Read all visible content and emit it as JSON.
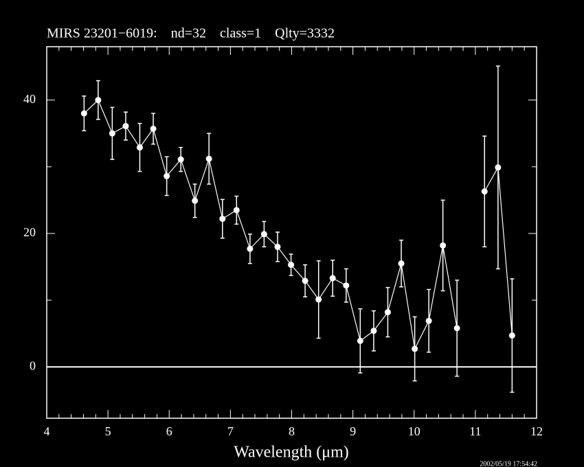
{
  "chart_data": {
    "type": "errorbar-line",
    "title": "MIRS 23201−6019:    nd=32    class=1    Qlty=3332",
    "x_label": "Wavelength (μm)",
    "timestamp": "2002/05/19 17:54:42",
    "series": [
      {
        "color": "#ffffff",
        "x": [
          4.61,
          4.84,
          5.07,
          5.29,
          5.52,
          5.74,
          5.96,
          6.19,
          6.42,
          6.65,
          6.87,
          7.1,
          7.32,
          7.55,
          7.77,
          7.99,
          8.22,
          8.44,
          8.67,
          8.89,
          9.12,
          9.34,
          9.57,
          9.79,
          10.01,
          10.24,
          10.47,
          10.7,
          10.92,
          11.15,
          11.37,
          11.6
        ],
        "values": [
          38.0,
          40.0,
          35.0,
          36.1,
          32.9,
          35.7,
          28.6,
          31.1,
          24.9,
          31.2,
          22.2,
          23.5,
          17.7,
          19.9,
          18.0,
          15.3,
          12.9,
          10.1,
          13.3,
          12.2,
          3.9,
          5.4,
          8.2,
          15.5,
          2.7,
          6.9,
          18.2,
          5.8,
          null,
          26.3,
          29.9,
          4.7
        ],
        "errors": [
          2.6,
          2.9,
          3.9,
          2.1,
          3.6,
          2.3,
          2.9,
          1.8,
          2.5,
          3.8,
          2.9,
          2.1,
          2.2,
          1.9,
          2.2,
          1.6,
          2.4,
          5.8,
          2.7,
          2.5,
          4.8,
          3.0,
          3.7,
          3.5,
          4.8,
          4.7,
          6.8,
          7.2,
          null,
          8.3,
          15.2,
          8.5
        ]
      }
    ],
    "xlim": [
      4,
      12
    ],
    "xticks": [
      4,
      5,
      6,
      7,
      8,
      9,
      10,
      11,
      12
    ],
    "ylim": [
      -7.7,
      48
    ],
    "yticks": [
      0,
      20,
      40
    ],
    "y_minor_ticks": [
      10,
      30
    ],
    "hline": 0
  }
}
